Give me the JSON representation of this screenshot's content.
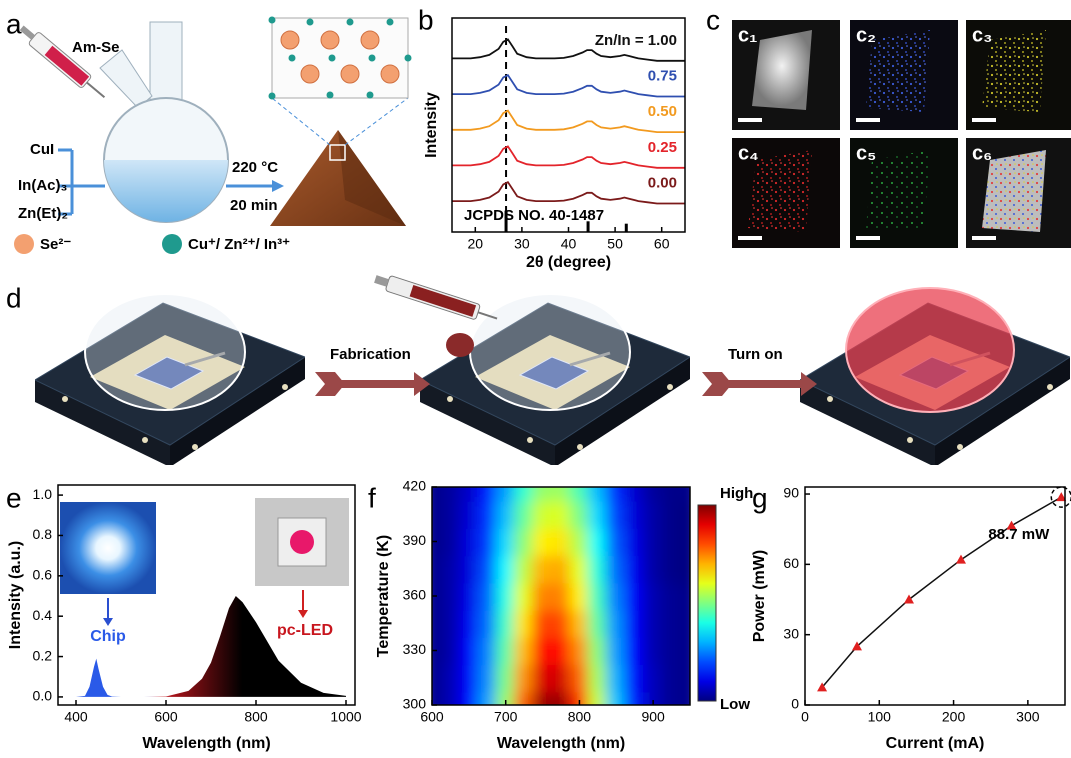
{
  "panel_labels": [
    "a",
    "b",
    "c",
    "d",
    "e",
    "f",
    "g"
  ],
  "panel_a": {
    "syringe": "Am-Se",
    "precursors": [
      "CuI",
      "In(Ac)₃",
      "Zn(Et)₂"
    ],
    "conditions": [
      "220 °C",
      "20 min"
    ],
    "legend": [
      "Se²⁻",
      "Cu⁺/ Zn²⁺/ In³⁺"
    ]
  },
  "panel_c": {
    "tiles": [
      "c₁",
      "c₂",
      "c₃",
      "c₄",
      "c₅",
      "c₆"
    ]
  },
  "panel_d": {
    "steps": [
      "Fabrication",
      "Turn on"
    ]
  },
  "chart_data": [
    {
      "type": "line",
      "x_label": "2θ (degree)",
      "y_label": "Intensity",
      "x": [
        15,
        17,
        19,
        21,
        23,
        25,
        26,
        27,
        28,
        29,
        31,
        33,
        35,
        37,
        39,
        41,
        43,
        44,
        45,
        46,
        47,
        49,
        51,
        52,
        53,
        55,
        57,
        59,
        61,
        63,
        65
      ],
      "series": [
        {
          "name": "Zn/In = 1.00",
          "color": "#111111",
          "values": [
            7.3,
            7.3,
            7.3,
            7.35,
            7.45,
            7.7,
            8,
            8.1,
            7.8,
            7.5,
            7.35,
            7.3,
            7.3,
            7.3,
            7.32,
            7.4,
            7.55,
            7.65,
            7.65,
            7.5,
            7.4,
            7.35,
            7.4,
            7.45,
            7.4,
            7.3,
            7.25,
            7.2,
            7.2,
            7.2,
            7.2
          ]
        },
        {
          "name": "0.75",
          "color": "#2f4fb0",
          "values": [
            5.8,
            5.8,
            5.8,
            5.85,
            5.95,
            6.2,
            6.5,
            6.6,
            6.3,
            6,
            5.85,
            5.8,
            5.8,
            5.8,
            5.82,
            5.9,
            6.05,
            6.15,
            6.15,
            6,
            5.9,
            5.85,
            5.9,
            5.95,
            5.9,
            5.8,
            5.75,
            5.7,
            5.7,
            5.7,
            5.7
          ]
        },
        {
          "name": "0.50",
          "color": "#f29a1f",
          "values": [
            4.3,
            4.3,
            4.3,
            4.35,
            4.45,
            4.7,
            5,
            5.1,
            4.8,
            4.5,
            4.35,
            4.3,
            4.3,
            4.3,
            4.32,
            4.4,
            4.55,
            4.65,
            4.65,
            4.5,
            4.4,
            4.35,
            4.4,
            4.45,
            4.4,
            4.3,
            4.25,
            4.2,
            4.2,
            4.2,
            4.2
          ]
        },
        {
          "name": "0.25",
          "color": "#e3242b",
          "values": [
            2.8,
            2.8,
            2.8,
            2.85,
            2.95,
            3.2,
            3.5,
            3.6,
            3.3,
            3,
            2.85,
            2.8,
            2.8,
            2.8,
            2.82,
            2.9,
            3.05,
            3.15,
            3.15,
            3,
            2.9,
            2.85,
            2.9,
            2.95,
            2.9,
            2.8,
            2.75,
            2.7,
            2.7,
            2.7,
            2.7
          ]
        },
        {
          "name": "0.00",
          "color": "#7b1a1a",
          "values": [
            1.3,
            1.3,
            1.3,
            1.35,
            1.45,
            1.7,
            2,
            2.1,
            1.8,
            1.5,
            1.35,
            1.3,
            1.3,
            1.3,
            1.32,
            1.4,
            1.55,
            1.65,
            1.65,
            1.5,
            1.4,
            1.35,
            1.4,
            1.45,
            1.4,
            1.3,
            1.25,
            1.2,
            1.2,
            1.2,
            1.2
          ]
        }
      ],
      "reference": {
        "name": "JCPDS NO. 40-1487",
        "x": [
          26.6,
          44.2,
          52.4
        ],
        "values": [
          0.9,
          0.45,
          0.35
        ]
      },
      "xlim": [
        15,
        65
      ],
      "xticks": [
        20,
        30,
        40,
        50,
        60
      ],
      "ylim": [
        0,
        9
      ]
    },
    {
      "type": "area",
      "x_label": "Wavelength (nm)",
      "y_label": "Intensity (a.u.)",
      "x": [
        400,
        420,
        430,
        440,
        445,
        450,
        460,
        470,
        480,
        500,
        550,
        600,
        650,
        680,
        700,
        720,
        740,
        755,
        770,
        800,
        850,
        900,
        950,
        1000
      ],
      "values": [
        0,
        0.005,
        0.05,
        0.15,
        0.19,
        0.14,
        0.05,
        0.01,
        0.002,
        0,
        0,
        0.002,
        0.03,
        0.09,
        0.17,
        0.3,
        0.44,
        0.5,
        0.47,
        0.37,
        0.18,
        0.07,
        0.02,
        0.005
      ],
      "colors": [
        "#2a5ae8",
        "#c8161e",
        "#000000"
      ],
      "annotations": [
        "Chip",
        "pc-LED"
      ],
      "xlim": [
        360,
        1020
      ],
      "xticks": [
        400,
        600,
        800,
        1000
      ],
      "ylim": [
        -0.04,
        1.05
      ],
      "yticks": [
        {
          "value": 0,
          "label": "0.0"
        },
        0.2,
        0.4,
        0.6,
        0.8,
        {
          "value": 1,
          "label": "1.0"
        }
      ]
    },
    {
      "type": "heatmap",
      "x_label": "Wavelength (nm)",
      "y_label": "Temperature (K)",
      "x": [
        600,
        625,
        650,
        675,
        700,
        725,
        750,
        775,
        800,
        825,
        850,
        875,
        900,
        925,
        950
      ],
      "y": [
        300,
        315,
        330,
        345,
        360,
        375,
        390,
        405,
        420
      ],
      "z": [
        [
          0.01,
          0.05,
          0.13,
          0.28,
          0.52,
          0.78,
          0.97,
          0.98,
          0.83,
          0.57,
          0.32,
          0.15,
          0.06,
          0.02,
          0.01
        ],
        [
          0.01,
          0.05,
          0.12,
          0.26,
          0.49,
          0.73,
          0.91,
          0.92,
          0.78,
          0.54,
          0.3,
          0.14,
          0.06,
          0.02,
          0.01
        ],
        [
          0.01,
          0.04,
          0.12,
          0.25,
          0.46,
          0.69,
          0.86,
          0.87,
          0.74,
          0.51,
          0.28,
          0.13,
          0.05,
          0.02,
          0.01
        ],
        [
          0.01,
          0.04,
          0.11,
          0.23,
          0.43,
          0.65,
          0.81,
          0.81,
          0.69,
          0.47,
          0.27,
          0.12,
          0.05,
          0.02,
          0.01
        ],
        [
          0.01,
          0.04,
          0.1,
          0.22,
          0.4,
          0.6,
          0.75,
          0.75,
          0.64,
          0.44,
          0.25,
          0.12,
          0.05,
          0.02,
          0.01
        ],
        [
          0.01,
          0.04,
          0.09,
          0.2,
          0.37,
          0.56,
          0.7,
          0.71,
          0.6,
          0.41,
          0.23,
          0.11,
          0.04,
          0.01,
          0
        ],
        [
          0.01,
          0.03,
          0.09,
          0.18,
          0.34,
          0.51,
          0.64,
          0.65,
          0.55,
          0.38,
          0.21,
          0.1,
          0.04,
          0.01,
          0
        ],
        [
          0.01,
          0.03,
          0.08,
          0.17,
          0.31,
          0.47,
          0.58,
          0.59,
          0.5,
          0.34,
          0.19,
          0.09,
          0.04,
          0.01,
          0
        ],
        [
          0.01,
          0.03,
          0.07,
          0.15,
          0.28,
          0.42,
          0.52,
          0.53,
          0.45,
          0.31,
          0.17,
          0.08,
          0.03,
          0.01,
          0.01
        ]
      ],
      "zlim": [
        0,
        1
      ],
      "colorbar_labels": [
        "High",
        "Low"
      ],
      "xlim": [
        600,
        950
      ],
      "xticks": [
        600,
        700,
        800,
        900
      ],
      "ylim": [
        300,
        420
      ],
      "yticks": [
        300,
        330,
        360,
        390,
        420
      ]
    },
    {
      "type": "scatter",
      "x_label": "Current (mA)",
      "y_label": "Power (mW)",
      "x": [
        23,
        70,
        140,
        210,
        278,
        345
      ],
      "values": [
        7.5,
        25,
        45,
        62,
        76.5,
        88.7
      ],
      "color": "#e02020",
      "line_color": "#111111",
      "annotation": "88.7 mW",
      "xlim": [
        0,
        350
      ],
      "xticks": [
        0,
        100,
        200,
        300
      ],
      "ylim": [
        0,
        93
      ],
      "yticks": [
        0,
        30,
        60,
        90
      ]
    }
  ]
}
